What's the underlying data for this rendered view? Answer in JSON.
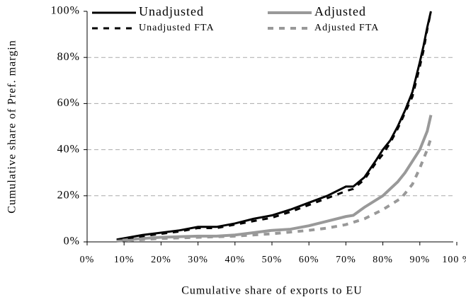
{
  "chart_data": {
    "type": "line",
    "x_label": "Cumulative share of exports to EU",
    "y_label": "Cumulative share of  Pref. margin",
    "xlim": [
      0,
      100
    ],
    "xticks": [
      {
        "value": 0,
        "label": "0%"
      },
      {
        "value": 10,
        "label": "10%"
      },
      {
        "value": 20,
        "label": "20%"
      },
      {
        "value": 30,
        "label": "30%"
      },
      {
        "value": 40,
        "label": "40%"
      },
      {
        "value": 50,
        "label": "50%"
      },
      {
        "value": 60,
        "label": "60%"
      },
      {
        "value": 70,
        "label": "70%"
      },
      {
        "value": 80,
        "label": "80%"
      },
      {
        "value": 90,
        "label": "90%"
      },
      {
        "value": 100,
        "label": "100 %"
      }
    ],
    "ylim": [
      0,
      100
    ],
    "yticks": [
      {
        "value": 0,
        "label": "0%"
      },
      {
        "value": 20,
        "label": "20%"
      },
      {
        "value": 40,
        "label": "40%"
      },
      {
        "value": 60,
        "label": "60%"
      },
      {
        "value": 80,
        "label": "80%"
      },
      {
        "value": 100,
        "label": "100%"
      }
    ],
    "grid": true,
    "legend": "top",
    "series": [
      {
        "name": "Unadjusted",
        "color": "#000000",
        "dash": false,
        "x": [
          8,
          15,
          20,
          25,
          30,
          35,
          40,
          45,
          50,
          55,
          60,
          65,
          70,
          72,
          75,
          78,
          80,
          82,
          84,
          86,
          88,
          90,
          91,
          92,
          93
        ],
        "values": [
          1,
          3,
          4,
          5,
          6.5,
          6.5,
          8,
          10,
          11.5,
          14,
          17,
          20,
          24,
          24,
          28,
          35,
          40,
          44,
          50,
          57,
          65,
          78,
          85,
          93,
          100
        ]
      },
      {
        "name": "Adjusted",
        "color": "#999999",
        "dash": false,
        "x": [
          8,
          15,
          20,
          30,
          35,
          40,
          45,
          50,
          55,
          60,
          65,
          70,
          72,
          75,
          78,
          80,
          82,
          84,
          86,
          88,
          90,
          92,
          93
        ],
        "values": [
          0.5,
          1.5,
          2,
          2.5,
          2.5,
          3,
          4,
          5,
          5.5,
          7,
          9,
          11,
          11.5,
          15,
          18,
          20,
          23,
          26,
          30,
          35,
          40,
          48,
          55
        ]
      },
      {
        "name": "Unadjusted FTA",
        "color": "#000000",
        "dash": true,
        "x": [
          8,
          15,
          20,
          25,
          30,
          35,
          40,
          45,
          50,
          55,
          60,
          65,
          70,
          72,
          75,
          78,
          80,
          82,
          84,
          86,
          88,
          90,
          91,
          92,
          93
        ],
        "values": [
          0.8,
          2.5,
          3.5,
          4.5,
          6,
          6,
          7.5,
          9,
          10.5,
          13,
          16,
          19,
          22,
          23,
          27,
          34,
          38,
          43,
          49,
          56,
          63,
          76,
          83,
          92,
          100
        ]
      },
      {
        "name": "Adjusted FTA",
        "color": "#999999",
        "dash": true,
        "x": [
          8,
          20,
          30,
          40,
          50,
          60,
          65,
          70,
          75,
          80,
          85,
          88,
          90,
          92,
          93
        ],
        "values": [
          0.3,
          1.5,
          2,
          2.5,
          3.5,
          5,
          6,
          7.5,
          10,
          14,
          19,
          25,
          32,
          40,
          45
        ]
      }
    ]
  }
}
